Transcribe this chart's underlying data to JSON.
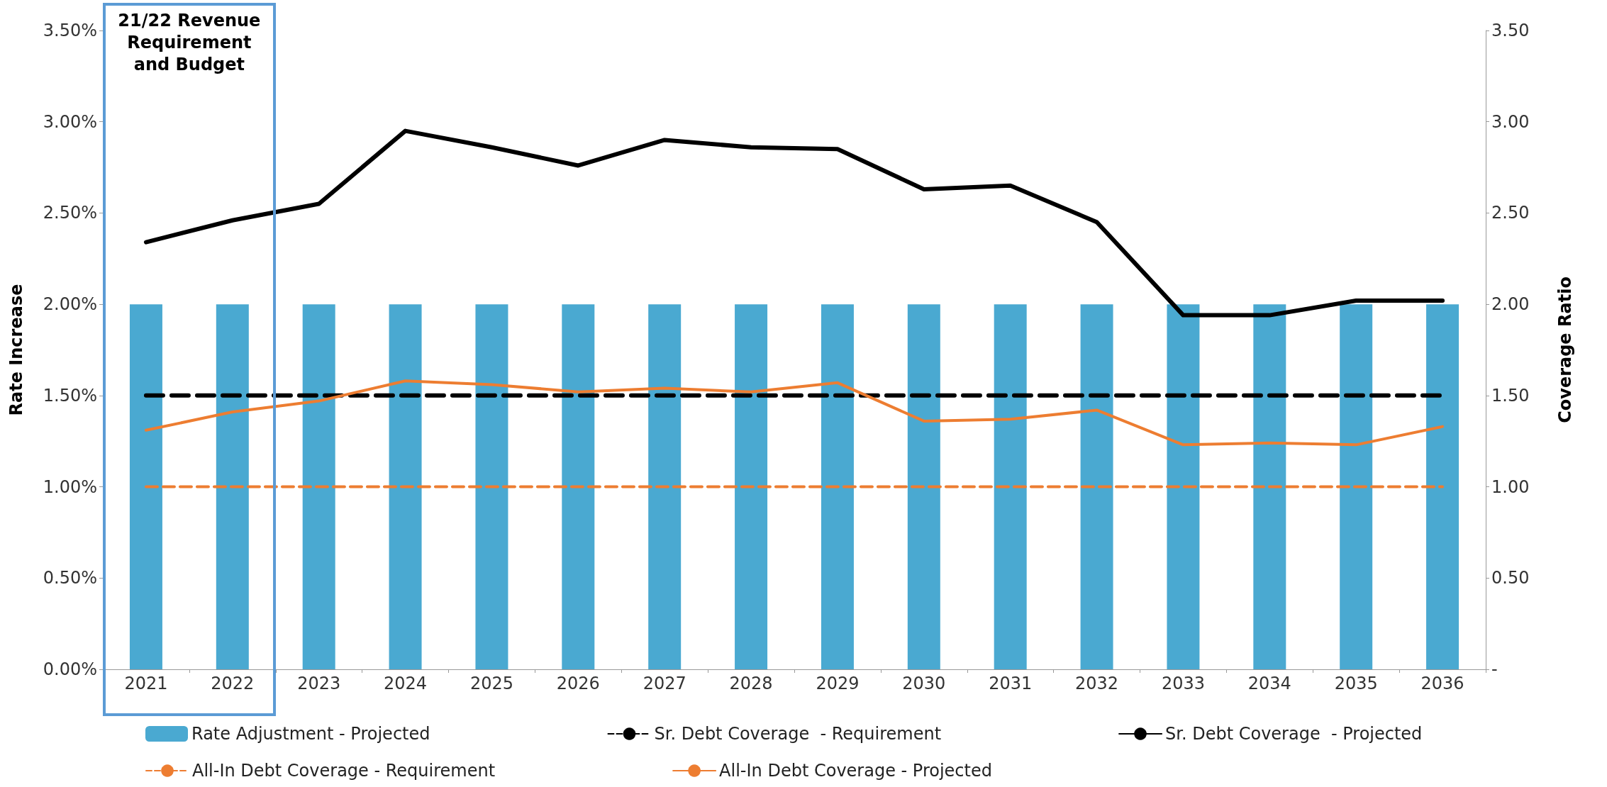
{
  "chart_data": {
    "type": "bar",
    "categories": [
      "2021",
      "2022",
      "2023",
      "2024",
      "2025",
      "2026",
      "2027",
      "2028",
      "2029",
      "2030",
      "2031",
      "2032",
      "2033",
      "2034",
      "2035",
      "2036"
    ],
    "ylabel": "Rate Increase",
    "y2label": "Coverage Ratio",
    "ylim": [
      0,
      3.5
    ],
    "yticks": [
      {
        "value": 0,
        "label": "0.00%"
      },
      {
        "value": 0.5,
        "label": "0.50%"
      },
      {
        "value": 1,
        "label": "1.00%"
      },
      {
        "value": 1.5,
        "label": "1.50%"
      },
      {
        "value": 2,
        "label": "2.00%"
      },
      {
        "value": 2.5,
        "label": "2.50%"
      },
      {
        "value": 3,
        "label": "3.00%"
      },
      {
        "value": 3.5,
        "label": "3.50%"
      }
    ],
    "y2lim": [
      0,
      3.5
    ],
    "y2ticks": [
      {
        "value": 0,
        "label": "-"
      },
      {
        "value": 0.5,
        "label": "0.50"
      },
      {
        "value": 1,
        "label": "1.00"
      },
      {
        "value": 1.5,
        "label": "1.50"
      },
      {
        "value": 2,
        "label": "2.00"
      },
      {
        "value": 2.5,
        "label": "2.50"
      },
      {
        "value": 3,
        "label": "3.00"
      },
      {
        "value": 3.5,
        "label": "3.50"
      }
    ],
    "legend": "bottom",
    "grid": false,
    "annotations": [
      "21/22 Revenue Requirement and Budget"
    ],
    "series": [
      {
        "name": "Rate Adjustment - Projected",
        "color": "#4aa9d1",
        "values": [
          2,
          2,
          2,
          2,
          2,
          2,
          2,
          2,
          2,
          2,
          2,
          2,
          2,
          2,
          2,
          2
        ]
      },
      {
        "name": "Sr. Debt Coverage  - Requirement",
        "type": "line",
        "axis": "y2",
        "line_style": "dashed",
        "marker": "none",
        "color": "#000000",
        "values": [
          1.5,
          1.5,
          1.5,
          1.5,
          1.5,
          1.5,
          1.5,
          1.5,
          1.5,
          1.5,
          1.5,
          1.5,
          1.5,
          1.5,
          1.5,
          1.5
        ]
      },
      {
        "name": "Sr. Debt Coverage  - Projected",
        "type": "line",
        "axis": "y2",
        "line_style": "solid",
        "marker": "none",
        "color": "#000000",
        "values": [
          2.34,
          2.46,
          2.55,
          2.95,
          2.86,
          2.76,
          2.9,
          2.86,
          2.85,
          2.63,
          2.65,
          2.45,
          1.94,
          1.94,
          2.02,
          2.02
        ]
      },
      {
        "name": "All-In Debt Coverage - Requirement",
        "type": "line",
        "axis": "y2",
        "line_style": "dashed",
        "marker": "none",
        "color": "#ed7d31",
        "values": [
          1,
          1,
          1,
          1,
          1,
          1,
          1,
          1,
          1,
          1,
          1,
          1,
          1,
          1,
          1,
          1
        ]
      },
      {
        "name": "All-In Debt Coverage - Projected",
        "type": "line",
        "axis": "y2",
        "line_style": "solid",
        "marker": "none",
        "color": "#ed7d31",
        "values": [
          1.31,
          1.41,
          1.47,
          1.58,
          1.56,
          1.52,
          1.54,
          1.52,
          1.57,
          1.36,
          1.37,
          1.42,
          1.23,
          1.24,
          1.23,
          1.33
        ]
      }
    ]
  }
}
